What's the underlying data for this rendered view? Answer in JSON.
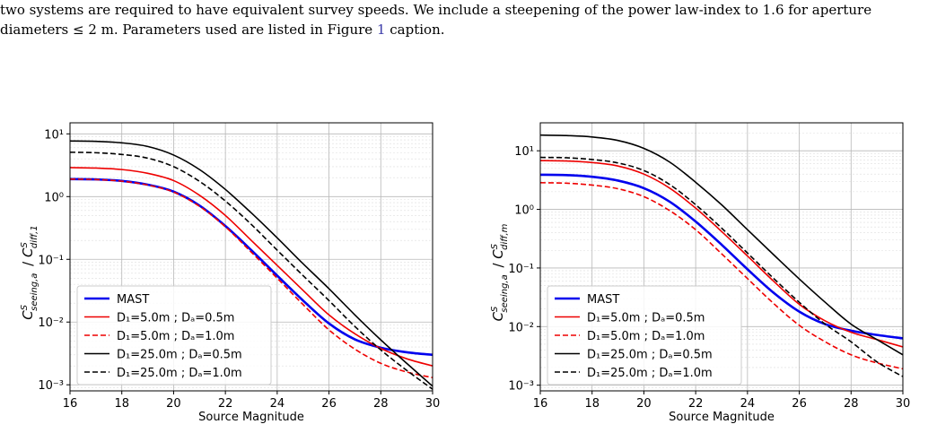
{
  "caption": {
    "line1": "two systems are required to have equivalent survey speeds. We include a steepening of the power law-index to 1.6 for aperture",
    "line2_pre": "diameters ≤ 2 m. Parameters used are listed in Figure ",
    "line2_ref": "1",
    "line2_post": " caption."
  },
  "chart_data": [
    {
      "type": "line",
      "xlabel": "Source Magnitude",
      "ylabel": "C^S_seeing,a / C^S_diff,1",
      "yscale": "log",
      "xlim": [
        16,
        30
      ],
      "ylim": [
        0.0008,
        15
      ],
      "xticks": [
        "16",
        "18",
        "20",
        "22",
        "24",
        "26",
        "28",
        "30"
      ],
      "yticks": [
        {
          "value": 0.001,
          "label": "10⁻³"
        },
        {
          "value": 0.01,
          "label": "10⁻²"
        },
        {
          "value": 0.1,
          "label": "10⁻¹"
        },
        {
          "value": 1,
          "label": "10⁰"
        },
        {
          "value": 10,
          "label": "10¹"
        }
      ],
      "grid": true,
      "legend_placement": "lower-left",
      "series": [
        {
          "name": "MAST",
          "color": "#0000ee",
          "style": "solid",
          "width": 2.6,
          "x": [
            16,
            17,
            18,
            19,
            20,
            21,
            22,
            23,
            24,
            25,
            26,
            27,
            28,
            29,
            30
          ],
          "y": [
            1.9,
            1.88,
            1.78,
            1.55,
            1.2,
            0.72,
            0.34,
            0.14,
            0.055,
            0.022,
            0.0095,
            0.0053,
            0.0039,
            0.0033,
            0.003
          ]
        },
        {
          "name": "D₁=5.0m ; Dₐ=0.5m",
          "color": "#ee0000",
          "style": "solid",
          "width": 1.6,
          "x": [
            16,
            17,
            18,
            19,
            20,
            21,
            22,
            23,
            24,
            25,
            26,
            27,
            28,
            29,
            30
          ],
          "y": [
            2.9,
            2.85,
            2.7,
            2.35,
            1.8,
            1.05,
            0.5,
            0.2,
            0.08,
            0.032,
            0.013,
            0.0065,
            0.0038,
            0.0026,
            0.002
          ]
        },
        {
          "name": "D₁=5.0m ; Dₐ=1.0m",
          "color": "#ee0000",
          "style": "dashed",
          "width": 1.6,
          "x": [
            16,
            17,
            18,
            19,
            20,
            21,
            22,
            23,
            24,
            25,
            26,
            27,
            28,
            29,
            30
          ],
          "y": [
            1.9,
            1.87,
            1.76,
            1.53,
            1.18,
            0.7,
            0.33,
            0.13,
            0.05,
            0.019,
            0.0075,
            0.0037,
            0.0022,
            0.0016,
            0.0013
          ]
        },
        {
          "name": "D₁=25.0m ; Dₐ=0.5m",
          "color": "#000000",
          "style": "solid",
          "width": 1.6,
          "x": [
            16,
            17,
            18,
            19,
            20,
            21,
            22,
            23,
            24,
            25,
            26,
            27,
            28,
            29,
            30
          ],
          "y": [
            7.7,
            7.6,
            7.2,
            6.3,
            4.6,
            2.7,
            1.3,
            0.55,
            0.22,
            0.085,
            0.034,
            0.013,
            0.0052,
            0.0022,
            0.00095
          ]
        },
        {
          "name": "D₁=25.0m ; Dₐ=1.0m",
          "color": "#000000",
          "style": "dashed",
          "width": 1.6,
          "x": [
            16,
            17,
            18,
            19,
            20,
            21,
            22,
            23,
            24,
            25,
            26,
            27,
            28,
            29,
            30
          ],
          "y": [
            5.1,
            5.0,
            4.7,
            4.1,
            3.0,
            1.75,
            0.85,
            0.36,
            0.14,
            0.055,
            0.022,
            0.0085,
            0.0036,
            0.0017,
            0.00085
          ]
        }
      ]
    },
    {
      "type": "line",
      "xlabel": "Source Magnitude",
      "ylabel": "C^S_seeing,a / C^S_diff,m",
      "yscale": "log",
      "xlim": [
        16,
        30
      ],
      "ylim": [
        0.0008,
        30
      ],
      "xticks": [
        "16",
        "18",
        "20",
        "22",
        "24",
        "26",
        "28",
        "30"
      ],
      "yticks": [
        {
          "value": 0.001,
          "label": "10⁻³"
        },
        {
          "value": 0.01,
          "label": "10⁻²"
        },
        {
          "value": 0.1,
          "label": "10⁻¹"
        },
        {
          "value": 1,
          "label": "10⁰"
        },
        {
          "value": 10,
          "label": "10¹"
        }
      ],
      "grid": true,
      "legend_placement": "lower-left",
      "series": [
        {
          "name": "MAST",
          "color": "#0000ee",
          "style": "solid",
          "width": 2.6,
          "x": [
            16,
            17,
            18,
            19,
            20,
            21,
            22,
            23,
            24,
            25,
            26,
            27,
            28,
            29,
            30
          ],
          "y": [
            3.9,
            3.85,
            3.6,
            3.1,
            2.3,
            1.35,
            0.62,
            0.25,
            0.095,
            0.038,
            0.018,
            0.011,
            0.0085,
            0.0072,
            0.0063
          ]
        },
        {
          "name": "D₁=5.0m ; Dₐ=0.5m",
          "color": "#ee0000",
          "style": "solid",
          "width": 1.6,
          "x": [
            16,
            17,
            18,
            19,
            20,
            21,
            22,
            23,
            24,
            25,
            26,
            27,
            28,
            29,
            30
          ],
          "y": [
            6.8,
            6.7,
            6.3,
            5.5,
            4.0,
            2.3,
            1.05,
            0.42,
            0.16,
            0.06,
            0.024,
            0.0125,
            0.008,
            0.006,
            0.0045
          ]
        },
        {
          "name": "D₁=5.0m ; Dₐ=1.0m",
          "color": "#ee0000",
          "style": "dashed",
          "width": 1.6,
          "x": [
            16,
            17,
            18,
            19,
            20,
            21,
            22,
            23,
            24,
            25,
            26,
            27,
            28,
            29,
            30
          ],
          "y": [
            2.85,
            2.8,
            2.6,
            2.25,
            1.65,
            0.95,
            0.45,
            0.175,
            0.066,
            0.025,
            0.0105,
            0.0055,
            0.0033,
            0.0024,
            0.0019
          ]
        },
        {
          "name": "D₁=25.0m ; Dₐ=0.5m",
          "color": "#000000",
          "style": "solid",
          "width": 1.6,
          "x": [
            16,
            17,
            18,
            19,
            20,
            21,
            22,
            23,
            24,
            25,
            26,
            27,
            28,
            29,
            30
          ],
          "y": [
            18.5,
            18.2,
            17.2,
            15.0,
            11.0,
            6.4,
            2.9,
            1.2,
            0.45,
            0.17,
            0.065,
            0.026,
            0.011,
            0.006,
            0.0033
          ]
        },
        {
          "name": "D₁=25.0m ; Dₐ=1.0m",
          "color": "#000000",
          "style": "dashed",
          "width": 1.6,
          "x": [
            16,
            17,
            18,
            19,
            20,
            21,
            22,
            23,
            24,
            25,
            26,
            27,
            28,
            29,
            30
          ],
          "y": [
            7.7,
            7.6,
            7.1,
            6.2,
            4.6,
            2.65,
            1.2,
            0.48,
            0.18,
            0.067,
            0.026,
            0.011,
            0.0055,
            0.0025,
            0.0014
          ]
        }
      ]
    }
  ]
}
